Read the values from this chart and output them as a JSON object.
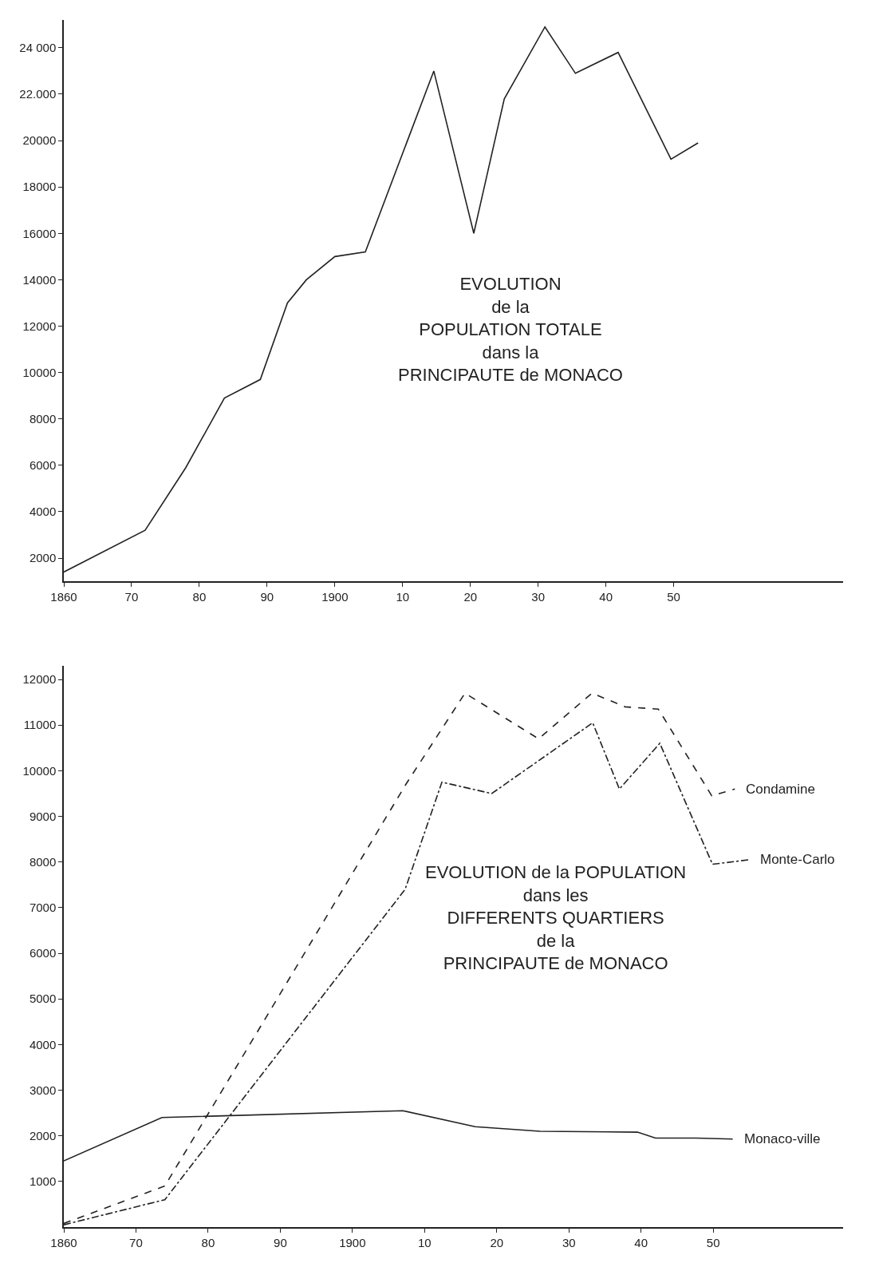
{
  "chart_data": [
    {
      "type": "line",
      "title": "EVOLUTION\nde la\nPOPULATION TOTALE\ndans la\nPRINCIPAUTE de MONACO",
      "x": [
        1860,
        1872,
        1878,
        1883.7,
        1889,
        1893,
        1895.8,
        1900,
        1904.5,
        1914.6,
        1920.5,
        1925,
        1931,
        1935.5,
        1941.8,
        1949.6,
        1953.6
      ],
      "series": [
        {
          "color": "#222222",
          "values": [
            1400,
            3200,
            5900,
            8900,
            9700,
            13000,
            14000,
            15000,
            15200,
            23000,
            16000,
            21800,
            24900,
            22900,
            23800,
            19200,
            19900
          ]
        }
      ],
      "xlim": [
        1860,
        1975
      ],
      "ylim": [
        1000,
        25200
      ],
      "xticks": [
        {
          "value": 1860,
          "label": "1860"
        },
        {
          "value": 1870,
          "label": "70"
        },
        {
          "value": 1880,
          "label": "80"
        },
        {
          "value": 1890,
          "label": "90"
        },
        1900,
        {
          "value": 1910,
          "label": "10"
        },
        {
          "value": 1920,
          "label": "20"
        },
        {
          "value": 1930,
          "label": "30"
        },
        {
          "value": 1940,
          "label": "40"
        },
        {
          "value": 1950,
          "label": "50"
        }
      ],
      "yticks": [
        2000,
        4000,
        6000,
        8000,
        10000,
        12000,
        14000,
        16000,
        18000,
        20000,
        {
          "value": 22000,
          "label": "22.000"
        },
        {
          "value": 24000,
          "label": "24 000"
        }
      ],
      "legend": false,
      "line_style": "solid"
    },
    {
      "type": "line",
      "title": "EVOLUTION de la POPULATION\ndans les\nDIFFERENTS QUARTIERS\nde la\nPRINCIPAUTE de MONACO",
      "series": [
        {
          "name": "Condamine",
          "color": "#222222",
          "line_style": "dashed",
          "x": [
            1860,
            1874,
            1907.4,
            1915.6,
            1925.8,
            1933.2,
            1937.8,
            1942.4,
            1949.8,
            1953
          ],
          "values": [
            80,
            900,
            9700,
            11700,
            10700,
            11700,
            11400,
            11350,
            9450,
            9600
          ]
        },
        {
          "name": "Monte-Carlo",
          "color": "#222222",
          "line_style": "dashdot",
          "x": [
            1860,
            1874,
            1907.3,
            1912.4,
            1919.3,
            1933.3,
            1937,
            1942.6,
            1949.9,
            1955
          ],
          "values": [
            50,
            600,
            7400,
            9750,
            9500,
            11050,
            9600,
            10600,
            7950,
            8050
          ]
        },
        {
          "name": "Monaco-ville",
          "color": "#222222",
          "line_style": "solid",
          "x": [
            1860,
            1873.6,
            1907,
            1917,
            1926,
            1939.5,
            1942,
            1947.6,
            1952.7
          ],
          "values": [
            1450,
            2400,
            2550,
            2200,
            2100,
            2080,
            1950,
            1950,
            1930
          ]
        }
      ],
      "xlim": [
        1860,
        1968
      ],
      "ylim": [
        0,
        12300
      ],
      "xticks": [
        {
          "value": 1860,
          "label": "1860"
        },
        {
          "value": 1870,
          "label": "70"
        },
        {
          "value": 1880,
          "label": "80"
        },
        {
          "value": 1890,
          "label": "90"
        },
        1900,
        {
          "value": 1910,
          "label": "10"
        },
        {
          "value": 1920,
          "label": "20"
        },
        {
          "value": 1930,
          "label": "30"
        },
        {
          "value": 1940,
          "label": "40"
        },
        {
          "value": 1950,
          "label": "50"
        }
      ],
      "yticks": [
        1000,
        2000,
        3000,
        4000,
        5000,
        6000,
        7000,
        8000,
        9000,
        10000,
        11000,
        12000
      ],
      "legend": false
    }
  ]
}
